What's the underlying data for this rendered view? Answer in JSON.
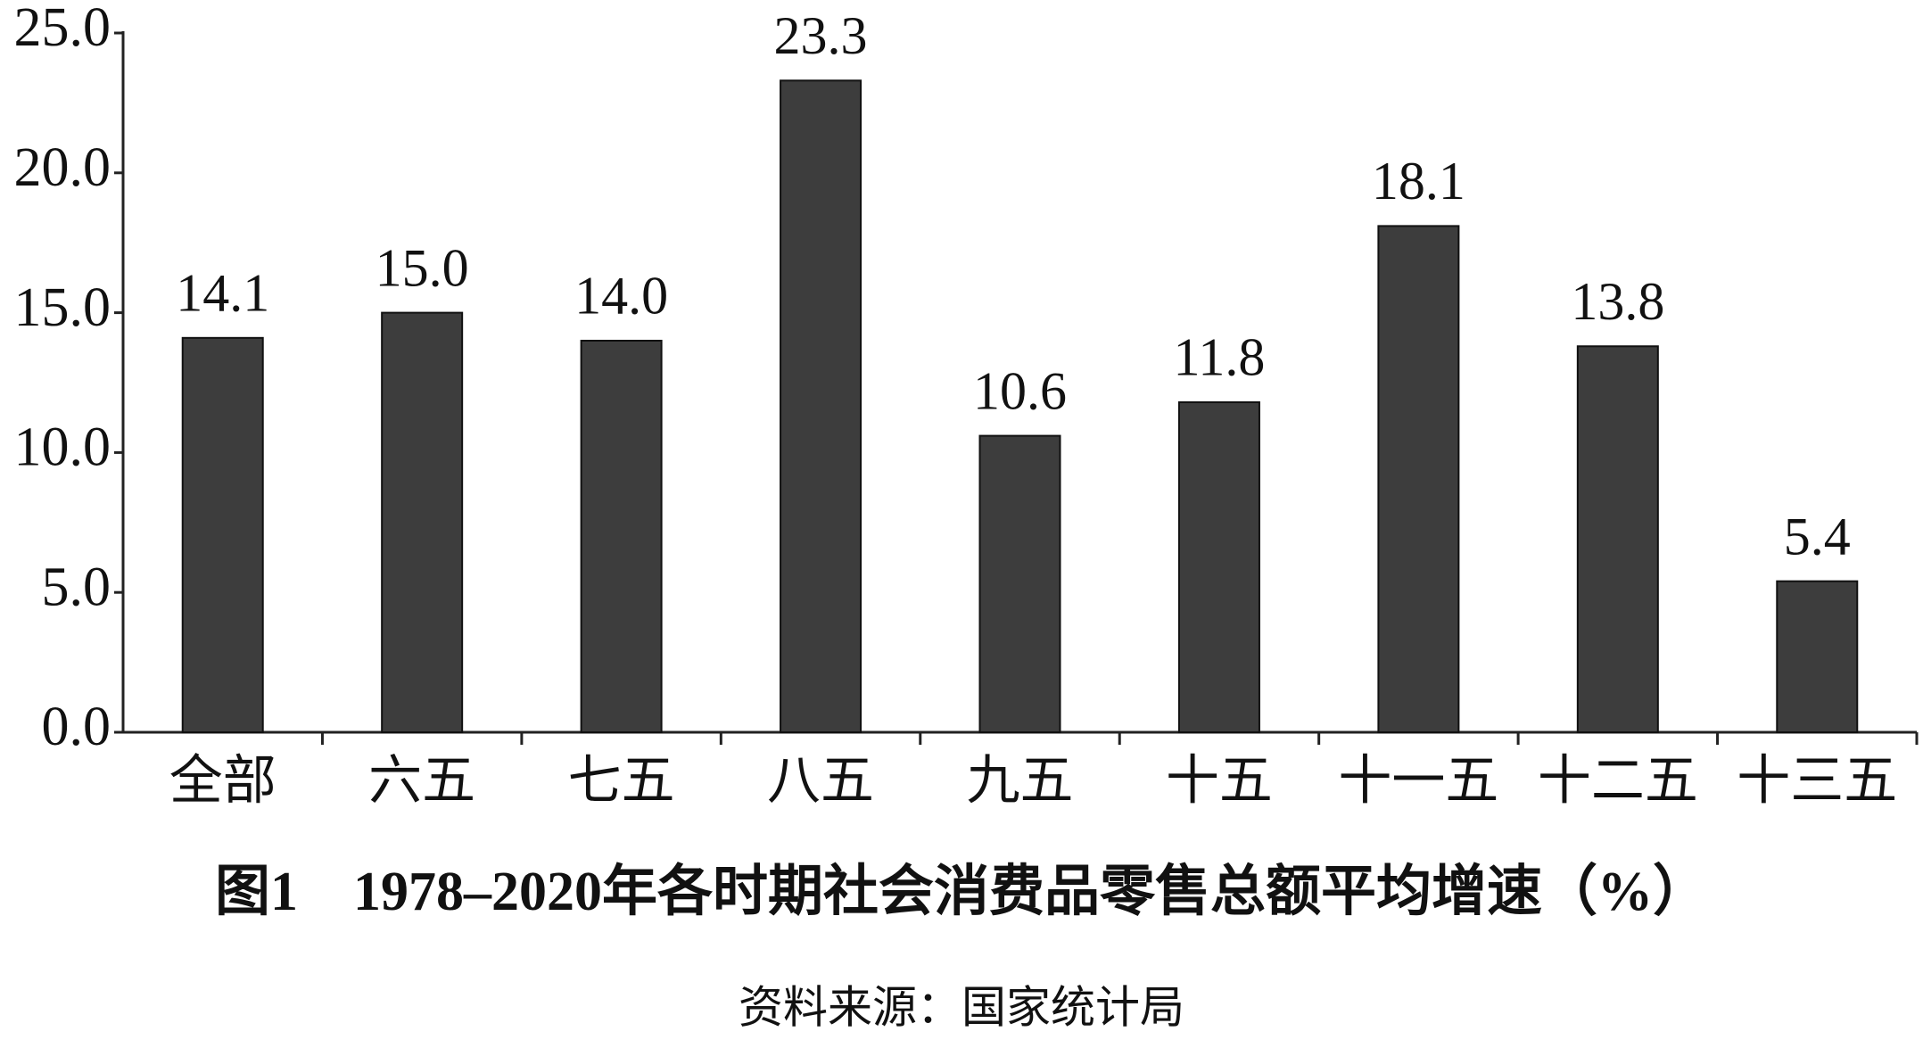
{
  "chart_data": {
    "type": "bar",
    "title": "图1　1978–2020年各时期社会消费品零售总额平均增速（%）",
    "source": "资料来源：国家统计局",
    "categories": [
      "全部",
      "六五",
      "七五",
      "八五",
      "九五",
      "十五",
      "十一五",
      "十二五",
      "十三五"
    ],
    "values": [
      14.1,
      15.0,
      14.0,
      23.3,
      10.6,
      11.8,
      18.1,
      13.8,
      5.4
    ],
    "value_labels": [
      "14.1",
      "15.0",
      "14.0",
      "23.3",
      "10.6",
      "11.8",
      "18.1",
      "13.8",
      "5.4"
    ],
    "color": "#3d3d3d",
    "ylim": [
      0,
      25
    ],
    "yticks": [
      {
        "value": 0,
        "label": "0.0"
      },
      {
        "value": 5,
        "label": "5.0"
      },
      {
        "value": 10,
        "label": "10.0"
      },
      {
        "value": 15,
        "label": "15.0"
      },
      {
        "value": 20,
        "label": "20.0"
      },
      {
        "value": 25,
        "label": "25.0"
      }
    ],
    "grid": false
  }
}
